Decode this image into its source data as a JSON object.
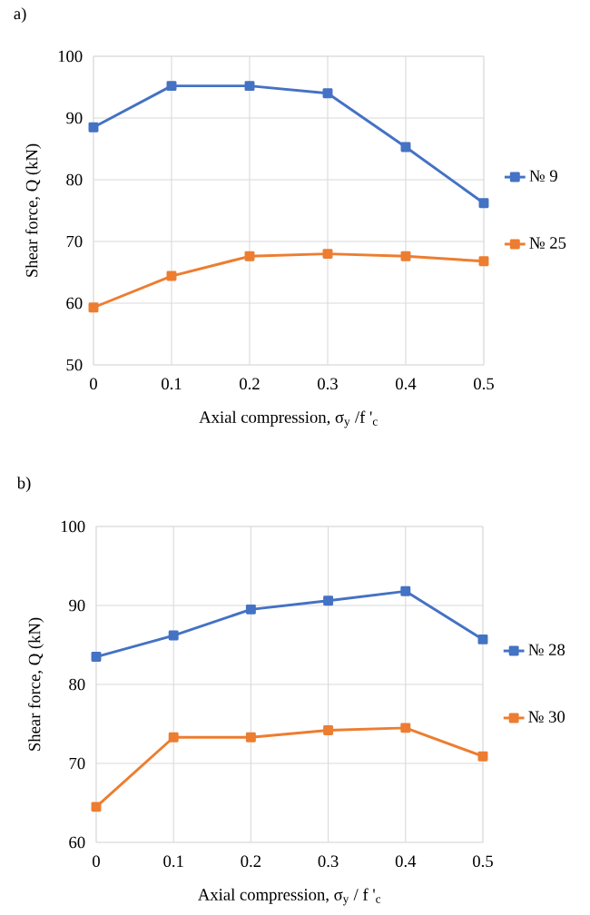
{
  "chart_data": [
    {
      "type": "line",
      "title": "a)",
      "xlabel": "Axial compression, σ$_{y}$ /f '$_{c}$",
      "ylabel": "Shear force, Q (kN)",
      "x": [
        0,
        0.1,
        0.2,
        0.3,
        0.4,
        0.5
      ],
      "series": [
        {
          "name": "№ 9",
          "color": "#4472c4",
          "values": [
            88.5,
            95.2,
            95.2,
            94.0,
            85.3,
            76.2
          ]
        },
        {
          "name": "№ 25",
          "color": "#ed7d31",
          "values": [
            59.3,
            64.4,
            67.6,
            68.0,
            67.6,
            66.8
          ]
        }
      ],
      "xlim": [
        0,
        0.5
      ],
      "xticks": [
        0,
        0.1,
        0.2,
        0.3,
        0.4,
        0.5
      ],
      "ylim": [
        50,
        100
      ],
      "yticks": [
        50,
        60,
        70,
        80,
        90,
        100
      ],
      "grid": true,
      "legend": "right",
      "marker": "square",
      "line_style": "solid"
    },
    {
      "type": "line",
      "title": "b)",
      "xlabel": "Axial compression, σ$_{y}$ / f '$_{c}$",
      "ylabel": "Shear force, Q (kN)",
      "x": [
        0,
        0.1,
        0.2,
        0.3,
        0.4,
        0.5
      ],
      "series": [
        {
          "name": "№ 28",
          "color": "#4472c4",
          "values": [
            83.5,
            86.2,
            89.5,
            90.6,
            91.8,
            85.7
          ]
        },
        {
          "name": "№ 30",
          "color": "#ed7d31",
          "values": [
            64.5,
            73.3,
            73.3,
            74.2,
            74.5,
            70.9
          ]
        }
      ],
      "xlim": [
        0,
        0.5
      ],
      "xticks": [
        0,
        0.1,
        0.2,
        0.3,
        0.4,
        0.5
      ],
      "ylim": [
        60,
        100
      ],
      "yticks": [
        60,
        70,
        80,
        90,
        100
      ],
      "grid": true,
      "legend": "right",
      "marker": "square",
      "line_style": "solid"
    }
  ]
}
